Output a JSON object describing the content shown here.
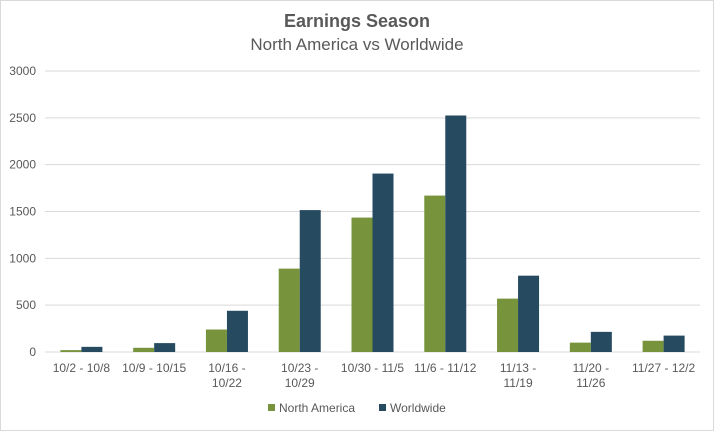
{
  "chart_data": {
    "type": "bar",
    "title": "Earnings Season",
    "subtitle": "North America vs Worldwide",
    "xlabel": "",
    "ylabel": "",
    "ylim": [
      0,
      3000
    ],
    "yticks": [
      0,
      500,
      1000,
      1500,
      2000,
      2500,
      3000
    ],
    "grid": true,
    "legend_position": "bottom",
    "categories": [
      [
        "10/2 - 10/8"
      ],
      [
        "10/9 - 10/15"
      ],
      [
        "10/16 -",
        "10/22"
      ],
      [
        "10/23 -",
        "10/29"
      ],
      [
        "10/30 - 11/5"
      ],
      [
        "11/6 - 11/12"
      ],
      [
        "11/13 -",
        "11/19"
      ],
      [
        "11/20 -",
        "11/26"
      ],
      [
        "11/27 - 12/2"
      ]
    ],
    "series": [
      {
        "name": "North America",
        "color": "#77933C",
        "values": [
          20,
          45,
          240,
          890,
          1435,
          1670,
          570,
          100,
          120
        ]
      },
      {
        "name": "Worldwide",
        "color": "#264A60",
        "values": [
          55,
          95,
          440,
          1515,
          1905,
          2525,
          815,
          215,
          175
        ]
      }
    ]
  }
}
